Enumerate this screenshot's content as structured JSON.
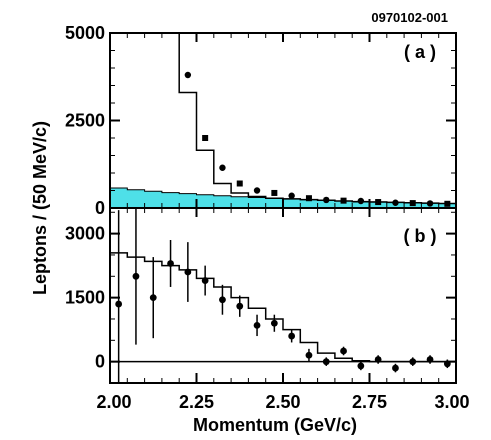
{
  "figure_id": "0970102-001",
  "colors": {
    "background_fill": "#4ee0e8",
    "ink": "#000000"
  },
  "chart_data": [
    {
      "panel_tag": "( a )",
      "type": "scatter",
      "xlim": [
        2.0,
        3.0
      ],
      "ylim": [
        0,
        5000
      ],
      "y_ticks": [
        0,
        2500,
        5000
      ],
      "y_tick_labels": [
        "0",
        "2500",
        "5000"
      ],
      "points": [
        {
          "x": 2.225,
          "y": 3800
        },
        {
          "x": 2.275,
          "y": 2000
        },
        {
          "x": 2.325,
          "y": 1150
        },
        {
          "x": 2.375,
          "y": 700
        },
        {
          "x": 2.425,
          "y": 500
        },
        {
          "x": 2.475,
          "y": 430
        },
        {
          "x": 2.525,
          "y": 350
        },
        {
          "x": 2.575,
          "y": 280
        },
        {
          "x": 2.625,
          "y": 230
        },
        {
          "x": 2.675,
          "y": 210
        },
        {
          "x": 2.725,
          "y": 200
        },
        {
          "x": 2.775,
          "y": 170
        },
        {
          "x": 2.825,
          "y": 150
        },
        {
          "x": 2.875,
          "y": 140
        },
        {
          "x": 2.925,
          "y": 130
        },
        {
          "x": 2.975,
          "y": 120
        }
      ],
      "model_histogram": {
        "bin_edges": [
          2.2,
          2.25,
          2.3,
          2.35,
          2.4,
          2.45,
          2.5,
          2.55,
          2.6,
          2.65,
          2.7,
          2.75,
          2.8,
          2.85,
          2.9,
          2.95,
          3.0
        ],
        "values": [
          3300,
          1650,
          700,
          430,
          330,
          280,
          260,
          240,
          220,
          200,
          180,
          170,
          160,
          150,
          140,
          130
        ],
        "leading_edge_top": 5000
      },
      "background_histogram": {
        "bin_edges": [
          2.0,
          2.05,
          2.1,
          2.15,
          2.2,
          2.25,
          2.3,
          2.35,
          2.4,
          2.45,
          2.5,
          2.55,
          2.6,
          2.65,
          2.7,
          2.75,
          2.8,
          2.85,
          2.9,
          2.95,
          3.0
        ],
        "values": [
          570,
          520,
          480,
          440,
          410,
          380,
          350,
          320,
          300,
          280,
          260,
          240,
          220,
          200,
          190,
          175,
          160,
          150,
          140,
          130
        ]
      }
    },
    {
      "panel_tag": "( b )",
      "type": "scatter",
      "xlim": [
        2.0,
        3.0
      ],
      "ylim": [
        -500,
        3600
      ],
      "y_ticks": [
        0,
        1500,
        3000
      ],
      "y_tick_labels": [
        "0",
        "1500",
        "3000"
      ],
      "x_ticks": [
        2.0,
        2.25,
        2.5,
        2.75,
        3.0
      ],
      "x_tick_labels": [
        "2.00",
        "2.25",
        "2.50",
        "2.75",
        "3.00"
      ],
      "xlabel": "Momentum (GeV/c)",
      "points": [
        {
          "x": 2.025,
          "y": 1350,
          "err": 2200
        },
        {
          "x": 2.075,
          "y": 2000,
          "err": 1600
        },
        {
          "x": 2.125,
          "y": 1500,
          "err": 950
        },
        {
          "x": 2.175,
          "y": 2300,
          "err": 550
        },
        {
          "x": 2.225,
          "y": 2100,
          "err": 700
        },
        {
          "x": 2.275,
          "y": 1900,
          "err": 350
        },
        {
          "x": 2.325,
          "y": 1450,
          "err": 350
        },
        {
          "x": 2.375,
          "y": 1300,
          "err": 250
        },
        {
          "x": 2.425,
          "y": 850,
          "err": 250
        },
        {
          "x": 2.475,
          "y": 900,
          "err": 200
        },
        {
          "x": 2.525,
          "y": 600,
          "err": 150
        },
        {
          "x": 2.575,
          "y": 150,
          "err": 150
        },
        {
          "x": 2.625,
          "y": 0,
          "err": 100
        },
        {
          "x": 2.675,
          "y": 250,
          "err": 100
        },
        {
          "x": 2.725,
          "y": -100,
          "err": 100
        },
        {
          "x": 2.775,
          "y": 50,
          "err": 100
        },
        {
          "x": 2.825,
          "y": -150,
          "err": 100
        },
        {
          "x": 2.875,
          "y": 0,
          "err": 100
        },
        {
          "x": 2.925,
          "y": 50,
          "err": 100
        },
        {
          "x": 2.975,
          "y": -50,
          "err": 100
        }
      ],
      "model_histogram": {
        "bin_edges": [
          2.0,
          2.05,
          2.1,
          2.15,
          2.2,
          2.25,
          2.3,
          2.35,
          2.4,
          2.45,
          2.5,
          2.55,
          2.6,
          2.65,
          2.7,
          2.75,
          2.8,
          2.85,
          2.9,
          2.95,
          3.0
        ],
        "values": [
          2550,
          2450,
          2350,
          2250,
          2150,
          1950,
          1750,
          1500,
          1250,
          1000,
          750,
          450,
          200,
          80,
          20,
          0,
          0,
          0,
          0,
          0
        ]
      }
    }
  ],
  "shared_ylabel": "Leptons / (50 MeV/c)"
}
